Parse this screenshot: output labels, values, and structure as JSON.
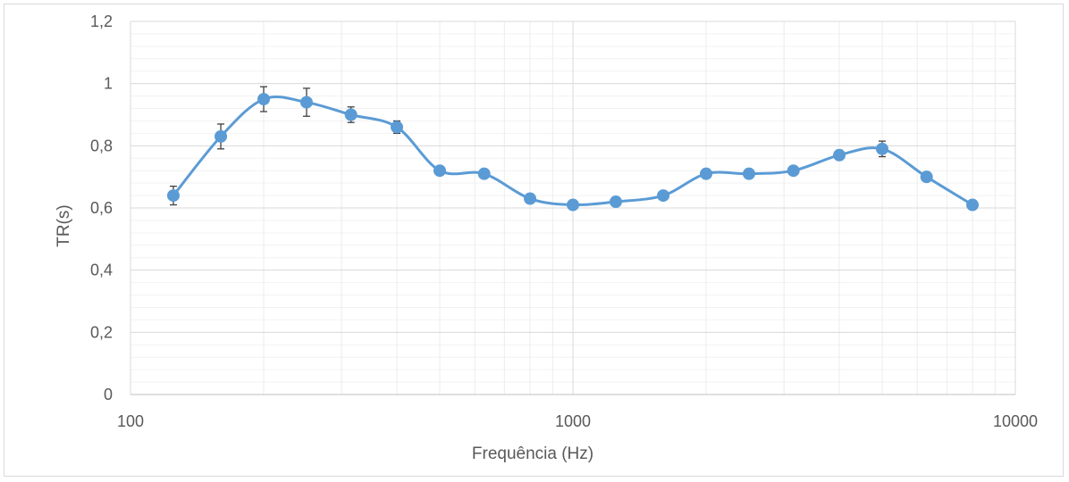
{
  "chart_data": {
    "type": "line",
    "title": "",
    "xlabel": "Frequência (Hz)",
    "ylabel": "TR(s)",
    "x_scale": "log",
    "xlim": [
      100,
      10000
    ],
    "ylim": [
      0,
      1.2
    ],
    "x_ticks": [
      100,
      1000,
      10000
    ],
    "x_tick_labels": [
      "100",
      "1000",
      "10000"
    ],
    "y_ticks": [
      0,
      0.2,
      0.4,
      0.6,
      0.8,
      1,
      1.2
    ],
    "y_tick_labels": [
      "0",
      "0,2",
      "0,4",
      "0,6",
      "0,8",
      "1",
      "1,2"
    ],
    "grid": true,
    "legend": "none",
    "series_color": "#5b9bd5",
    "error_bar_color": "#404040",
    "series": [
      {
        "name": "",
        "x": [
          125,
          160,
          200,
          250,
          315,
          400,
          500,
          630,
          800,
          1000,
          1250,
          1600,
          2000,
          2500,
          3150,
          4000,
          5000,
          6300,
          8000
        ],
        "y": [
          0.64,
          0.83,
          0.95,
          0.94,
          0.9,
          0.86,
          0.72,
          0.71,
          0.63,
          0.61,
          0.62,
          0.64,
          0.71,
          0.71,
          0.72,
          0.77,
          0.79,
          0.7,
          0.61
        ],
        "error": [
          0.03,
          0.04,
          0.04,
          0.045,
          0.025,
          0.02,
          0.01,
          0.01,
          0.01,
          0.01,
          0.01,
          0.01,
          0.01,
          0.01,
          0.01,
          0.015,
          0.025,
          0.015,
          0.01
        ]
      }
    ]
  }
}
